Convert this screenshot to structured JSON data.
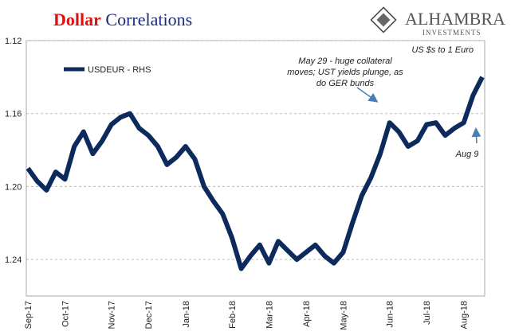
{
  "chart_data": {
    "type": "line",
    "title": [
      "Dollar",
      "Correlations"
    ],
    "logo": [
      "ALHAMBRA",
      "INVESTMENTS"
    ],
    "subtitle": "US $s to 1 Euro",
    "annotations": [
      [
        "May 29 - huge collateral",
        "moves; UST yields plunge, as",
        "do GER bunds"
      ],
      [
        "Aug 9"
      ]
    ],
    "categories": [
      "Sep-17",
      null,
      null,
      null,
      "Oct-17",
      null,
      null,
      null,
      null,
      "Nov-17",
      null,
      null,
      null,
      "Dec-17",
      null,
      null,
      null,
      "Jan-18",
      null,
      null,
      null,
      null,
      "Feb-18",
      null,
      null,
      null,
      "Mar-18",
      null,
      null,
      null,
      "Apr-18",
      null,
      null,
      null,
      "May-18",
      null,
      null,
      null,
      null,
      "Jun-18",
      null,
      null,
      null,
      "Jul-18",
      null,
      null,
      null,
      "Aug-18",
      null,
      null
    ],
    "series": [
      {
        "name": "USDEUR - RHS",
        "color": "#0d2a5c",
        "values": [
          1.19,
          1.197,
          1.202,
          1.192,
          1.196,
          1.178,
          1.17,
          1.182,
          1.175,
          1.166,
          1.162,
          1.16,
          1.168,
          1.172,
          1.178,
          1.188,
          1.184,
          1.178,
          1.185,
          1.2,
          1.208,
          1.215,
          1.228,
          1.245,
          1.238,
          1.232,
          1.242,
          1.23,
          1.235,
          1.24,
          1.236,
          1.232,
          1.238,
          1.242,
          1.236,
          1.22,
          1.205,
          1.195,
          1.182,
          1.165,
          1.17,
          1.178,
          1.175,
          1.166,
          1.165,
          1.172,
          1.168,
          1.165,
          1.15,
          1.14
        ]
      }
    ],
    "ylim": [
      1.26,
      1.12
    ],
    "yticks": [
      1.12,
      1.16,
      {
        "value": 1.2,
        "label": "1.20"
      },
      1.24
    ],
    "grid": true
  }
}
